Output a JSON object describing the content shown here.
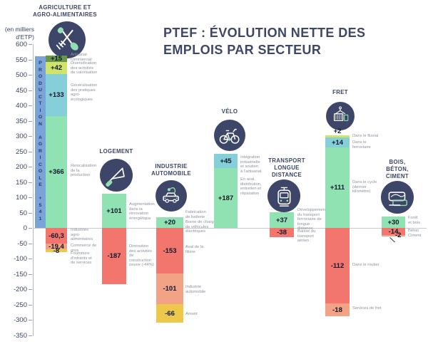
{
  "chart_data": {
    "type": "bar",
    "stacked": true,
    "title": "PTEF : ÉVOLUTION NETTE DES\nEMPLOIS PAR SECTEUR",
    "ylabel": "(en milliers d'ETP)",
    "ylabel_display": "(en milliers\nd'ETP)",
    "ylim": [
      -350,
      600
    ],
    "grid": false,
    "y_ticks": [
      600,
      550,
      500,
      450,
      400,
      350,
      300,
      250,
      200,
      150,
      100,
      50,
      0,
      -50,
      -100,
      -150,
      -200,
      -250,
      -300,
      -350
    ],
    "colors": {
      "navy": "#3d4668",
      "blue": "#79a3d9",
      "green_dark": "#68974b",
      "lime": "#cfe468",
      "teal": "#86ced9",
      "mint": "#90e2b2",
      "red": "#f3766e",
      "salmon": "#f2a285",
      "yellow": "#edc84b",
      "annotation_gray": "#8d939e"
    },
    "sectors": [
      {
        "name": "AGRICULTURE ET\nAGRO-ALIMENTAIRES",
        "icon": "farm-tools-icon",
        "total_bar": {
          "label": "PRODUCTION AGRICOLE +541",
          "value": 541
        },
        "segments": [
          {
            "value": 15,
            "display": "+15",
            "color": "green_dark",
            "annotation": "Artisanat\ncommercial"
          },
          {
            "value": 42,
            "display": "+42",
            "color": "lime",
            "annotation": "Diversification\ndes activités\nde valorisation"
          },
          {
            "value": 133,
            "display": "+133",
            "color": "teal",
            "annotation": "Généralisation\ndes pratiques\nagro-\nécologiques"
          },
          {
            "value": 366,
            "display": "+366",
            "color": "mint",
            "annotation": "Relocalisation\nde la\nproduction"
          },
          {
            "value": -60.3,
            "display": "-60,3",
            "color": "red",
            "annotation": "Industries\nagro-\nalimentaires"
          },
          {
            "value": -19.4,
            "display": "-19,4",
            "color": "salmon",
            "annotation": "Commerce de\ngros"
          },
          {
            "value": -8,
            "display": "-8",
            "color": "yellow",
            "annotation": "Fourniture\nd'intrants et\nde services"
          }
        ]
      },
      {
        "name": "LOGEMENT",
        "icon": "trowel-icon",
        "segments": [
          {
            "value": 101,
            "display": "+101",
            "color": "mint",
            "annotation": "Augmentation\ndans la\nrénovation\nénergétique"
          },
          {
            "value": -187,
            "display": "-187",
            "color": "red",
            "annotation": "Diminution\ndes activités\nde\nconstruction\nneuve (-44%)"
          }
        ]
      },
      {
        "name": "INDUSTRIE\nAUTOMOBILE",
        "icon": "electric-car-icon",
        "segments": [
          {
            "value": 20,
            "display": "+20",
            "color": "mint",
            "annotation": [
              "Fabrication\nde batterie",
              "Borne de charge\nde véhicules\nélectriques"
            ]
          },
          {
            "value": -153,
            "display": "-153",
            "color": "red",
            "annotation": "Aval de la\nfilière"
          },
          {
            "value": -101,
            "display": "-101",
            "color": "salmon",
            "annotation": "Industrie\nautomobile"
          },
          {
            "value": -66,
            "display": "-66",
            "color": "yellow",
            "annotation": "Amont"
          }
        ]
      },
      {
        "name": "VÉLO",
        "icon": "bicycle-icon",
        "segments": [
          {
            "value": 45,
            "display": "+45",
            "color": "teal",
            "annotation": "Intégration\nindustrielle\net soutien\nà l'artisanat"
          },
          {
            "value": 187,
            "display": "+187",
            "color": "mint",
            "annotation": "En aval,\ndistribution,\nentretien et\nréparation"
          }
        ]
      },
      {
        "name": "TRANSPORT\nLONGUE\nDISTANCE",
        "icon": "train-icon",
        "segments": [
          {
            "value": 37,
            "display": "+37",
            "color": "mint",
            "annotation": "Développement\ndu transport\nferroviaire de\nlongue\ndistance"
          },
          {
            "value": -38,
            "display": "-38",
            "color": "red",
            "annotation": "Baisse du\ntransport\naérien"
          }
        ]
      },
      {
        "name": "FRET",
        "icon": "crane-container-icon",
        "segments": [
          {
            "value": 2,
            "display": "+2",
            "color": "lime",
            "annotation": "Dans le fluvial"
          },
          {
            "value": 14,
            "display": "+14",
            "color": "teal",
            "annotation": "Dans le\nferroviaire"
          },
          {
            "value": 111,
            "display": "+111",
            "color": "mint",
            "annotation": "Dans le cycle\n(dernier\nkilomètre)"
          },
          {
            "value": -112,
            "display": "-112",
            "color": "red",
            "annotation": "Dans le routier"
          },
          {
            "value": -18,
            "display": "-18",
            "color": "salmon",
            "annotation": "Services de fret"
          }
        ]
      },
      {
        "name": "BOIS,\nBÉTON,\nCIMENT",
        "icon": "wood-stack-icon",
        "segments": [
          {
            "value": 30,
            "display": "+30",
            "color": "mint",
            "annotation": "Forêt\net bois"
          },
          {
            "value": -14,
            "display": "-14",
            "color": "red",
            "annotation": "Béton\nCiment"
          },
          {
            "value": -2,
            "display": "-2",
            "color": "salmon",
            "annotation": ""
          }
        ]
      }
    ]
  }
}
